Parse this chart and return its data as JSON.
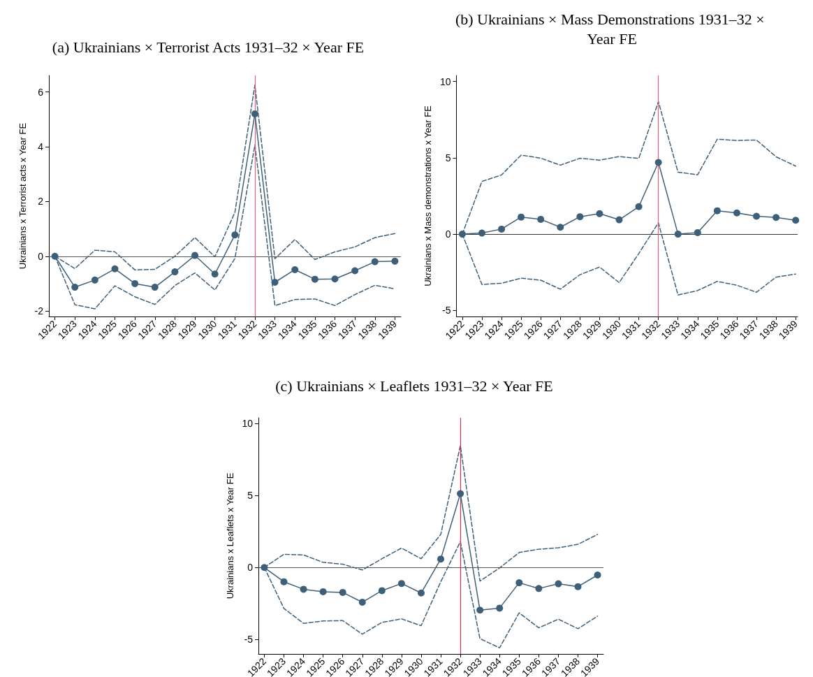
{
  "chart_data": [
    {
      "type": "line",
      "title": "(a) Ukrainians × Terrorist Acts 1931–32 × Year FE",
      "ylabel": "Ukrainians x Terrorist acts x Year FE",
      "x": [
        1922,
        1923,
        1924,
        1925,
        1926,
        1927,
        1928,
        1929,
        1930,
        1931,
        1932,
        1933,
        1934,
        1935,
        1936,
        1937,
        1938,
        1939
      ],
      "xlim": [
        1921.7,
        1939.3
      ],
      "xticks": [
        1922,
        1923,
        1924,
        1925,
        1926,
        1927,
        1928,
        1929,
        1930,
        1931,
        1932,
        1933,
        1934,
        1935,
        1936,
        1937,
        1938,
        1939
      ],
      "ylim": [
        -2.2,
        6.6
      ],
      "yticks": [
        -2,
        0,
        2,
        4,
        6
      ],
      "grid": false,
      "marker": "circle",
      "line_style": "solid",
      "series": [
        {
          "color": "#3e5f78",
          "values": [
            0,
            -1.13,
            -0.87,
            -0.46,
            -1.0,
            -1.13,
            -0.57,
            0.03,
            -0.65,
            0.78,
            5.2,
            -0.95,
            -0.49,
            -0.84,
            -0.83,
            -0.53,
            -0.2,
            -0.18
          ]
        },
        {
          "color": "#3e5f78",
          "marker": "none",
          "line_style": "dashed",
          "values": [
            0,
            -0.45,
            0.22,
            0.16,
            -0.5,
            -0.48,
            0,
            0.68,
            -0.02,
            1.6,
            6.25,
            -0.09,
            0.61,
            -0.12,
            0.16,
            0.34,
            0.68,
            0.83
          ]
        },
        {
          "color": "#3e5f78",
          "marker": "none",
          "line_style": "dashed",
          "values": [
            0,
            -1.77,
            -1.92,
            -1.08,
            -1.48,
            -1.76,
            -1.07,
            -0.61,
            -1.23,
            -0.08,
            4.06,
            -1.8,
            -1.58,
            -1.56,
            -1.8,
            -1.4,
            -1.06,
            -1.19
          ]
        }
      ],
      "ref_lines": [
        {
          "axis": "y",
          "value": 0,
          "color": "#555555"
        },
        {
          "axis": "x",
          "value": 1932,
          "color": "#e0607e"
        }
      ]
    },
    {
      "type": "line",
      "title": "(b) Ukrainians × Mass Demonstrations 1931–32 × Year FE",
      "ylabel": "Ukrainians x Mass demonstrations x Year FE",
      "x": [
        1922,
        1923,
        1924,
        1925,
        1926,
        1927,
        1928,
        1929,
        1930,
        1931,
        1932,
        1933,
        1934,
        1935,
        1936,
        1937,
        1938,
        1939
      ],
      "xlim": [
        1921.7,
        1939.1
      ],
      "xticks": [
        1922,
        1923,
        1924,
        1925,
        1926,
        1927,
        1928,
        1929,
        1930,
        1931,
        1932,
        1933,
        1934,
        1935,
        1936,
        1937,
        1938,
        1939
      ],
      "ylim": [
        -5.4,
        10.4
      ],
      "yticks": [
        -5,
        0,
        5,
        10
      ],
      "grid": false,
      "marker": "circle",
      "line_style": "solid",
      "series": [
        {
          "color": "#3e5f78",
          "values": [
            0,
            0.07,
            0.33,
            1.12,
            0.97,
            0.45,
            1.14,
            1.34,
            0.94,
            1.8,
            4.7,
            0,
            0.1,
            1.53,
            1.39,
            1.17,
            1.09,
            0.91
          ]
        },
        {
          "color": "#3e5f78",
          "marker": "none",
          "line_style": "dashed",
          "values": [
            0,
            3.45,
            3.88,
            5.18,
            4.98,
            4.52,
            4.97,
            4.85,
            5.08,
            4.97,
            8.68,
            4.06,
            3.89,
            6.22,
            6.14,
            6.17,
            5.07,
            4.46
          ]
        },
        {
          "color": "#3e5f78",
          "marker": "none",
          "line_style": "dashed",
          "values": [
            0,
            -3.3,
            -3.22,
            -2.89,
            -3.02,
            -3.61,
            -2.66,
            -2.16,
            -3.18,
            -1.27,
            0.74,
            -3.99,
            -3.7,
            -3.1,
            -3.35,
            -3.81,
            -2.82,
            -2.62
          ]
        }
      ],
      "ref_lines": [
        {
          "axis": "y",
          "value": 0,
          "color": "#333333"
        },
        {
          "axis": "x",
          "value": 1932,
          "color": "#e0607e"
        }
      ]
    },
    {
      "type": "line",
      "title": "(c) Ukrainians × Leaflets 1931–32 × Year FE",
      "ylabel": "Ukrainians x Leaflets x Year FE",
      "x": [
        1922,
        1923,
        1924,
        1925,
        1926,
        1927,
        1928,
        1929,
        1930,
        1931,
        1932,
        1933,
        1934,
        1935,
        1936,
        1937,
        1938,
        1939
      ],
      "xlim": [
        1921.7,
        1939.3
      ],
      "xticks": [
        1922,
        1923,
        1924,
        1925,
        1926,
        1927,
        1928,
        1929,
        1930,
        1931,
        1932,
        1933,
        1934,
        1935,
        1936,
        1937,
        1938,
        1939
      ],
      "ylim": [
        -6,
        10.4
      ],
      "yticks": [
        -5,
        0,
        5,
        10
      ],
      "grid": false,
      "marker": "circle",
      "line_style": "solid",
      "series": [
        {
          "color": "#3e5f78",
          "values": [
            0,
            -0.99,
            -1.51,
            -1.68,
            -1.73,
            -2.41,
            -1.61,
            -1.11,
            -1.77,
            0.59,
            5.13,
            -2.96,
            -2.82,
            -1.06,
            -1.46,
            -1.13,
            -1.33,
            -0.52
          ]
        },
        {
          "color": "#3e5f78",
          "marker": "none",
          "line_style": "dashed",
          "values": [
            0,
            0.92,
            0.87,
            0.36,
            0.23,
            -0.17,
            0.61,
            1.35,
            0.61,
            2.3,
            8.46,
            -0.94,
            -0.03,
            1.04,
            1.27,
            1.37,
            1.61,
            2.3
          ]
        },
        {
          "color": "#3e5f78",
          "marker": "none",
          "line_style": "dashed",
          "values": [
            0,
            -2.84,
            -3.88,
            -3.71,
            -3.69,
            -4.63,
            -3.81,
            -3.57,
            -4.04,
            -0.99,
            1.79,
            -4.94,
            -5.58,
            -3.15,
            -4.19,
            -3.59,
            -4.25,
            -3.38
          ]
        }
      ],
      "ref_lines": [
        {
          "axis": "y",
          "value": 0,
          "color": "#555555"
        },
        {
          "axis": "x",
          "value": 1932,
          "color": "#d0304e"
        }
      ]
    }
  ]
}
